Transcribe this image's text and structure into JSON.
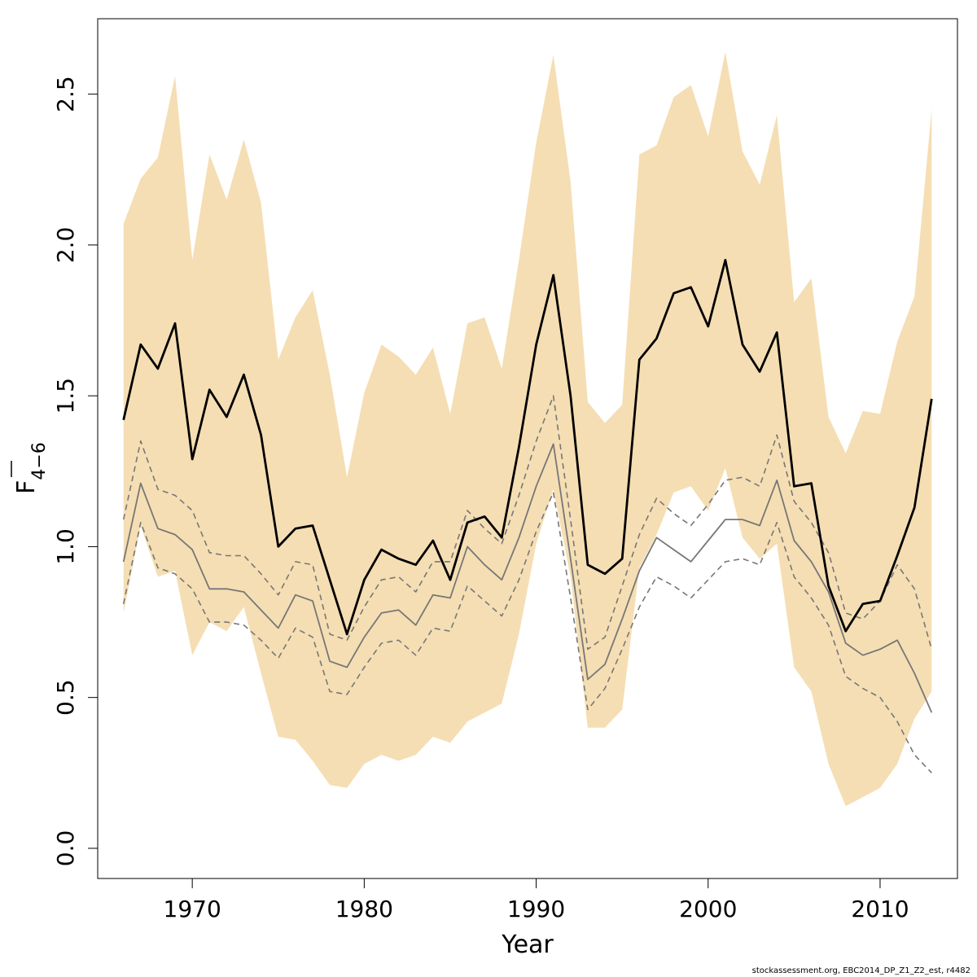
{
  "chart_data": {
    "type": "line",
    "title": "",
    "xlabel": "Year",
    "ylabel_main": "F",
    "ylabel_sub": "4−6",
    "xlim": [
      1964.5,
      2014.5
    ],
    "ylim": [
      -0.1,
      2.75
    ],
    "xticks": [
      1970,
      1980,
      1990,
      2000,
      2010
    ],
    "xtick_labels": [
      "1970",
      "1980",
      "1990",
      "2000",
      "2010"
    ],
    "yticks": [
      0,
      0.5,
      1,
      1.5,
      2,
      2.5
    ],
    "ytick_labels": [
      "0.0",
      "0.5",
      "1.0",
      "1.5",
      "2.0",
      "2.5"
    ],
    "colors": {
      "band": "#f5deb3",
      "main": "#000000",
      "retro": "#777777",
      "retro_ci": "#777777"
    },
    "x": [
      1966,
      1967,
      1968,
      1969,
      1970,
      1971,
      1972,
      1973,
      1974,
      1975,
      1976,
      1977,
      1978,
      1979,
      1980,
      1981,
      1982,
      1983,
      1984,
      1985,
      1986,
      1987,
      1988,
      1989,
      1990,
      1991,
      1992,
      1993,
      1994,
      1995,
      1996,
      1997,
      1998,
      1999,
      2000,
      2001,
      2002,
      2003,
      2004,
      2005,
      2006,
      2007,
      2008,
      2009,
      2010,
      2011,
      2012,
      2013
    ],
    "series": [
      {
        "name": "band_upper",
        "role": "band_upper",
        "values": [
          2.07,
          2.22,
          2.29,
          2.56,
          1.95,
          2.3,
          2.15,
          2.35,
          2.14,
          1.62,
          1.76,
          1.85,
          1.57,
          1.23,
          1.51,
          1.67,
          1.63,
          1.57,
          1.66,
          1.44,
          1.74,
          1.76,
          1.59,
          1.95,
          2.34,
          2.63,
          2.21,
          1.48,
          1.41,
          1.47,
          2.3,
          2.33,
          2.49,
          2.53,
          2.36,
          2.64,
          2.31,
          2.2,
          2.43,
          1.81,
          1.89,
          1.43,
          1.31,
          1.45,
          1.44,
          1.68,
          1.83,
          2.45
        ]
      },
      {
        "name": "band_lower",
        "role": "band_lower",
        "values": [
          0.78,
          1.07,
          0.9,
          0.92,
          0.64,
          0.75,
          0.72,
          0.8,
          0.58,
          0.37,
          0.36,
          0.29,
          0.21,
          0.2,
          0.28,
          0.31,
          0.29,
          0.31,
          0.37,
          0.35,
          0.42,
          0.45,
          0.48,
          0.71,
          1.01,
          1.19,
          0.9,
          0.4,
          0.4,
          0.46,
          0.93,
          1.04,
          1.18,
          1.2,
          1.12,
          1.26,
          1.03,
          0.96,
          1.01,
          0.6,
          0.52,
          0.28,
          0.14,
          0.17,
          0.2,
          0.28,
          0.43,
          0.52
        ]
      },
      {
        "name": "F estimate",
        "role": "main",
        "values": [
          1.42,
          1.67,
          1.59,
          1.74,
          1.29,
          1.52,
          1.43,
          1.57,
          1.37,
          1.0,
          1.06,
          1.07,
          0.89,
          0.71,
          0.89,
          0.99,
          0.96,
          0.94,
          1.02,
          0.89,
          1.08,
          1.1,
          1.03,
          1.33,
          1.67,
          1.9,
          1.5,
          0.94,
          0.91,
          0.96,
          1.62,
          1.69,
          1.84,
          1.86,
          1.73,
          1.95,
          1.67,
          1.58,
          1.71,
          1.2,
          1.21,
          0.87,
          0.72,
          0.81,
          0.82,
          0.97,
          1.13,
          1.49
        ]
      },
      {
        "name": "retro estimate",
        "role": "retro",
        "values": [
          0.95,
          1.21,
          1.06,
          1.04,
          0.99,
          0.86,
          0.86,
          0.85,
          0.79,
          0.73,
          0.84,
          0.82,
          0.62,
          0.6,
          0.7,
          0.78,
          0.79,
          0.74,
          0.84,
          0.83,
          1.0,
          0.94,
          0.89,
          1.03,
          1.2,
          1.34,
          0.96,
          0.56,
          0.61,
          0.76,
          0.92,
          1.03,
          0.99,
          0.95,
          1.02,
          1.09,
          1.09,
          1.07,
          1.22,
          1.02,
          0.95,
          0.85,
          0.68,
          0.64,
          0.66,
          0.69,
          0.58,
          0.45
        ]
      },
      {
        "name": "retro upper",
        "role": "retro_ci",
        "values": [
          1.09,
          1.35,
          1.19,
          1.17,
          1.12,
          0.98,
          0.97,
          0.97,
          0.91,
          0.84,
          0.95,
          0.94,
          0.71,
          0.69,
          0.8,
          0.89,
          0.9,
          0.85,
          0.95,
          0.95,
          1.12,
          1.06,
          1.01,
          1.17,
          1.35,
          1.5,
          1.09,
          0.66,
          0.7,
          0.87,
          1.04,
          1.16,
          1.11,
          1.07,
          1.14,
          1.22,
          1.23,
          1.2,
          1.37,
          1.15,
          1.08,
          0.98,
          0.78,
          0.76,
          0.82,
          0.94,
          0.86,
          0.66
        ]
      },
      {
        "name": "retro lower",
        "role": "retro_ci",
        "values": [
          0.81,
          1.08,
          0.93,
          0.91,
          0.86,
          0.75,
          0.75,
          0.74,
          0.69,
          0.63,
          0.73,
          0.7,
          0.52,
          0.51,
          0.6,
          0.68,
          0.69,
          0.64,
          0.73,
          0.72,
          0.87,
          0.82,
          0.77,
          0.89,
          1.05,
          1.18,
          0.83,
          0.46,
          0.53,
          0.66,
          0.8,
          0.9,
          0.87,
          0.83,
          0.89,
          0.95,
          0.96,
          0.94,
          1.08,
          0.9,
          0.83,
          0.74,
          0.57,
          0.53,
          0.5,
          0.42,
          0.31,
          0.25
        ]
      }
    ]
  },
  "footer": {
    "text": "stockassessment.org, EBC2014_DP_Z1_Z2_est, r4482"
  }
}
